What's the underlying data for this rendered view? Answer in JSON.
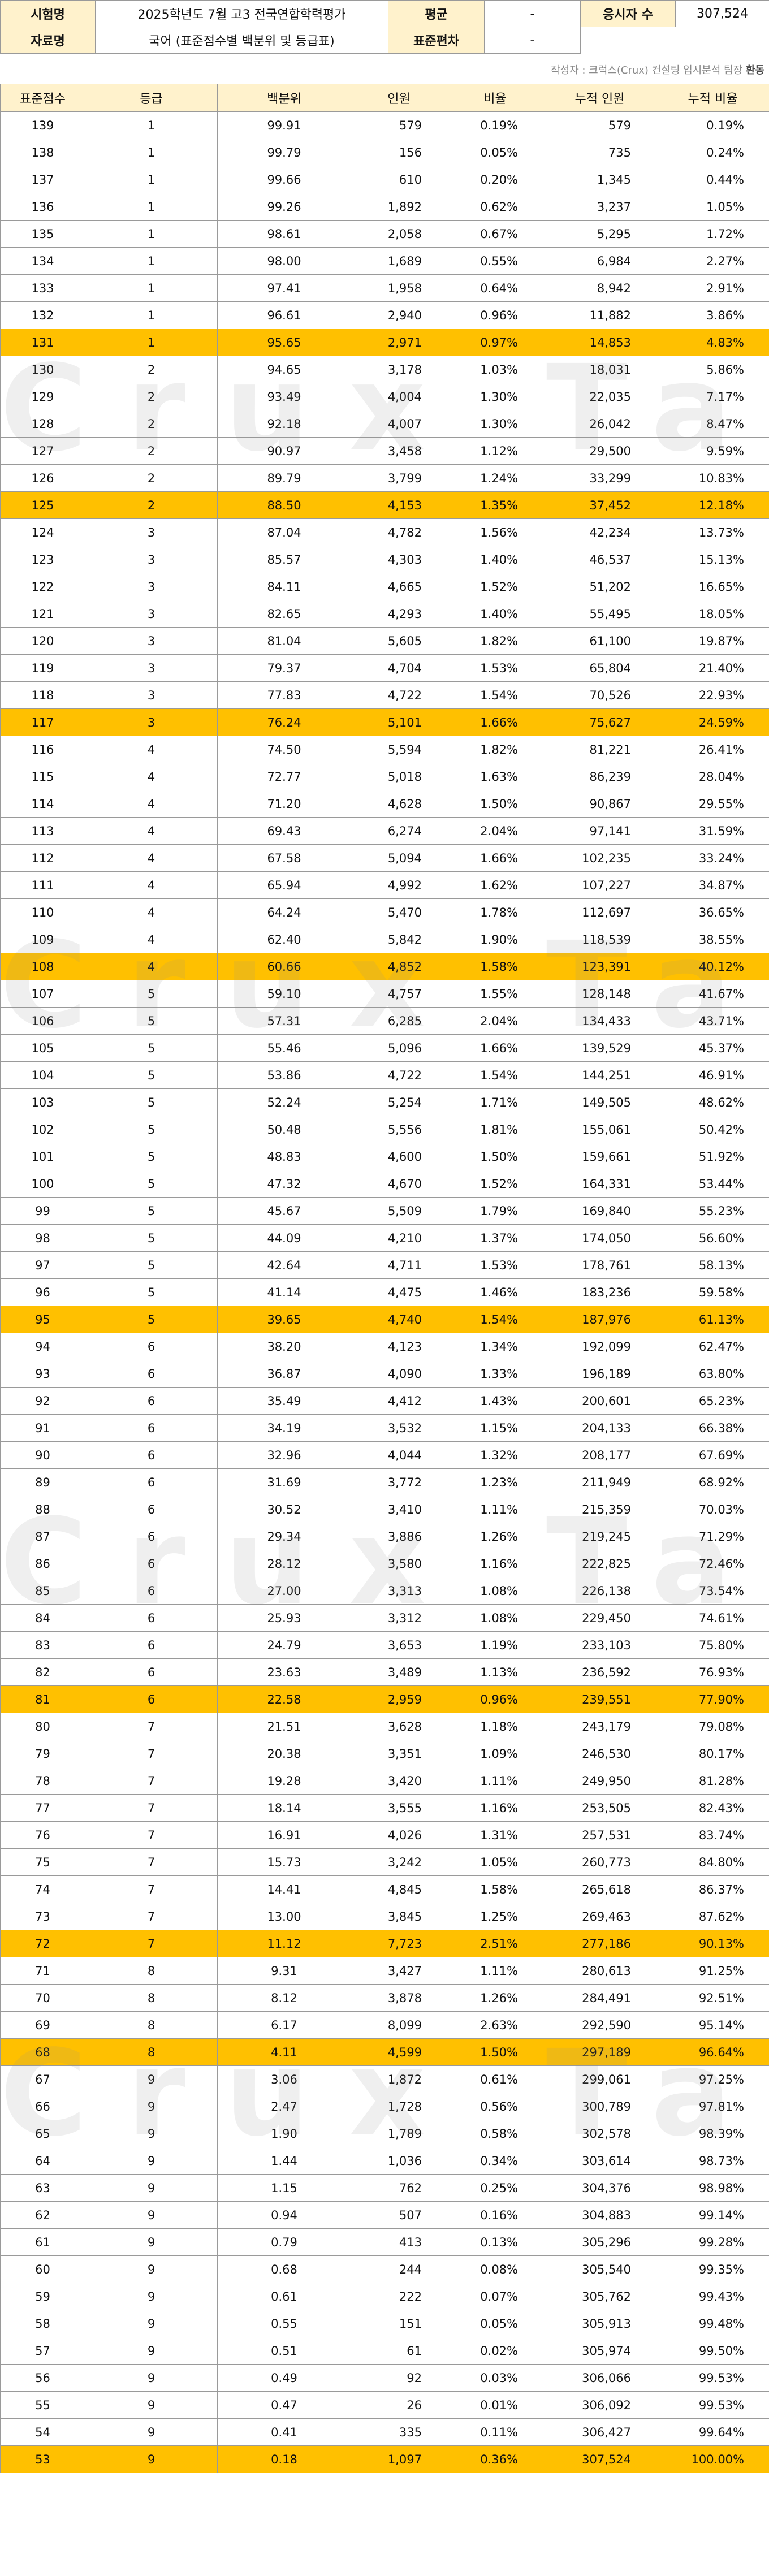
{
  "header": {
    "exam_label": "시험명",
    "exam_value": "2025학년도 7월 고3 전국연합학력평가",
    "mean_label": "평균",
    "mean_value": "-",
    "examinees_label": "응시자 수",
    "examinees_value": "307,524",
    "material_label": "자료명",
    "material_value": "국어 (표준점수별 백분위 및 등급표)",
    "sd_label": "표준편차",
    "sd_value": "-"
  },
  "credit": {
    "text": "작성자 : 크럭스(Crux) 컨설팅 입시분석 팀장 ",
    "author": "환동"
  },
  "watermark": "Crux Tape",
  "columns": [
    "표준점수",
    "등급",
    "백분위",
    "인원",
    "비율",
    "누적 인원",
    "누적 비율"
  ],
  "rows": [
    [
      "139",
      "1",
      "99.91",
      "579",
      "0.19%",
      "579",
      "0.19%"
    ],
    [
      "138",
      "1",
      "99.79",
      "156",
      "0.05%",
      "735",
      "0.24%"
    ],
    [
      "137",
      "1",
      "99.66",
      "610",
      "0.20%",
      "1,345",
      "0.44%"
    ],
    [
      "136",
      "1",
      "99.26",
      "1,892",
      "0.62%",
      "3,237",
      "1.05%"
    ],
    [
      "135",
      "1",
      "98.61",
      "2,058",
      "0.67%",
      "5,295",
      "1.72%"
    ],
    [
      "134",
      "1",
      "98.00",
      "1,689",
      "0.55%",
      "6,984",
      "2.27%"
    ],
    [
      "133",
      "1",
      "97.41",
      "1,958",
      "0.64%",
      "8,942",
      "2.91%"
    ],
    [
      "132",
      "1",
      "96.61",
      "2,940",
      "0.96%",
      "11,882",
      "3.86%"
    ],
    [
      "131",
      "1",
      "95.65",
      "2,971",
      "0.97%",
      "14,853",
      "4.83%"
    ],
    [
      "130",
      "2",
      "94.65",
      "3,178",
      "1.03%",
      "18,031",
      "5.86%"
    ],
    [
      "129",
      "2",
      "93.49",
      "4,004",
      "1.30%",
      "22,035",
      "7.17%"
    ],
    [
      "128",
      "2",
      "92.18",
      "4,007",
      "1.30%",
      "26,042",
      "8.47%"
    ],
    [
      "127",
      "2",
      "90.97",
      "3,458",
      "1.12%",
      "29,500",
      "9.59%"
    ],
    [
      "126",
      "2",
      "89.79",
      "3,799",
      "1.24%",
      "33,299",
      "10.83%"
    ],
    [
      "125",
      "2",
      "88.50",
      "4,153",
      "1.35%",
      "37,452",
      "12.18%"
    ],
    [
      "124",
      "3",
      "87.04",
      "4,782",
      "1.56%",
      "42,234",
      "13.73%"
    ],
    [
      "123",
      "3",
      "85.57",
      "4,303",
      "1.40%",
      "46,537",
      "15.13%"
    ],
    [
      "122",
      "3",
      "84.11",
      "4,665",
      "1.52%",
      "51,202",
      "16.65%"
    ],
    [
      "121",
      "3",
      "82.65",
      "4,293",
      "1.40%",
      "55,495",
      "18.05%"
    ],
    [
      "120",
      "3",
      "81.04",
      "5,605",
      "1.82%",
      "61,100",
      "19.87%"
    ],
    [
      "119",
      "3",
      "79.37",
      "4,704",
      "1.53%",
      "65,804",
      "21.40%"
    ],
    [
      "118",
      "3",
      "77.83",
      "4,722",
      "1.54%",
      "70,526",
      "22.93%"
    ],
    [
      "117",
      "3",
      "76.24",
      "5,101",
      "1.66%",
      "75,627",
      "24.59%"
    ],
    [
      "116",
      "4",
      "74.50",
      "5,594",
      "1.82%",
      "81,221",
      "26.41%"
    ],
    [
      "115",
      "4",
      "72.77",
      "5,018",
      "1.63%",
      "86,239",
      "28.04%"
    ],
    [
      "114",
      "4",
      "71.20",
      "4,628",
      "1.50%",
      "90,867",
      "29.55%"
    ],
    [
      "113",
      "4",
      "69.43",
      "6,274",
      "2.04%",
      "97,141",
      "31.59%"
    ],
    [
      "112",
      "4",
      "67.58",
      "5,094",
      "1.66%",
      "102,235",
      "33.24%"
    ],
    [
      "111",
      "4",
      "65.94",
      "4,992",
      "1.62%",
      "107,227",
      "34.87%"
    ],
    [
      "110",
      "4",
      "64.24",
      "5,470",
      "1.78%",
      "112,697",
      "36.65%"
    ],
    [
      "109",
      "4",
      "62.40",
      "5,842",
      "1.90%",
      "118,539",
      "38.55%"
    ],
    [
      "108",
      "4",
      "60.66",
      "4,852",
      "1.58%",
      "123,391",
      "40.12%"
    ],
    [
      "107",
      "5",
      "59.10",
      "4,757",
      "1.55%",
      "128,148",
      "41.67%"
    ],
    [
      "106",
      "5",
      "57.31",
      "6,285",
      "2.04%",
      "134,433",
      "43.71%"
    ],
    [
      "105",
      "5",
      "55.46",
      "5,096",
      "1.66%",
      "139,529",
      "45.37%"
    ],
    [
      "104",
      "5",
      "53.86",
      "4,722",
      "1.54%",
      "144,251",
      "46.91%"
    ],
    [
      "103",
      "5",
      "52.24",
      "5,254",
      "1.71%",
      "149,505",
      "48.62%"
    ],
    [
      "102",
      "5",
      "50.48",
      "5,556",
      "1.81%",
      "155,061",
      "50.42%"
    ],
    [
      "101",
      "5",
      "48.83",
      "4,600",
      "1.50%",
      "159,661",
      "51.92%"
    ],
    [
      "100",
      "5",
      "47.32",
      "4,670",
      "1.52%",
      "164,331",
      "53.44%"
    ],
    [
      "99",
      "5",
      "45.67",
      "5,509",
      "1.79%",
      "169,840",
      "55.23%"
    ],
    [
      "98",
      "5",
      "44.09",
      "4,210",
      "1.37%",
      "174,050",
      "56.60%"
    ],
    [
      "97",
      "5",
      "42.64",
      "4,711",
      "1.53%",
      "178,761",
      "58.13%"
    ],
    [
      "96",
      "5",
      "41.14",
      "4,475",
      "1.46%",
      "183,236",
      "59.58%"
    ],
    [
      "95",
      "5",
      "39.65",
      "4,740",
      "1.54%",
      "187,976",
      "61.13%"
    ],
    [
      "94",
      "6",
      "38.20",
      "4,123",
      "1.34%",
      "192,099",
      "62.47%"
    ],
    [
      "93",
      "6",
      "36.87",
      "4,090",
      "1.33%",
      "196,189",
      "63.80%"
    ],
    [
      "92",
      "6",
      "35.49",
      "4,412",
      "1.43%",
      "200,601",
      "65.23%"
    ],
    [
      "91",
      "6",
      "34.19",
      "3,532",
      "1.15%",
      "204,133",
      "66.38%"
    ],
    [
      "90",
      "6",
      "32.96",
      "4,044",
      "1.32%",
      "208,177",
      "67.69%"
    ],
    [
      "89",
      "6",
      "31.69",
      "3,772",
      "1.23%",
      "211,949",
      "68.92%"
    ],
    [
      "88",
      "6",
      "30.52",
      "3,410",
      "1.11%",
      "215,359",
      "70.03%"
    ],
    [
      "87",
      "6",
      "29.34",
      "3,886",
      "1.26%",
      "219,245",
      "71.29%"
    ],
    [
      "86",
      "6",
      "28.12",
      "3,580",
      "1.16%",
      "222,825",
      "72.46%"
    ],
    [
      "85",
      "6",
      "27.00",
      "3,313",
      "1.08%",
      "226,138",
      "73.54%"
    ],
    [
      "84",
      "6",
      "25.93",
      "3,312",
      "1.08%",
      "229,450",
      "74.61%"
    ],
    [
      "83",
      "6",
      "24.79",
      "3,653",
      "1.19%",
      "233,103",
      "75.80%"
    ],
    [
      "82",
      "6",
      "23.63",
      "3,489",
      "1.13%",
      "236,592",
      "76.93%"
    ],
    [
      "81",
      "6",
      "22.58",
      "2,959",
      "0.96%",
      "239,551",
      "77.90%"
    ],
    [
      "80",
      "7",
      "21.51",
      "3,628",
      "1.18%",
      "243,179",
      "79.08%"
    ],
    [
      "79",
      "7",
      "20.38",
      "3,351",
      "1.09%",
      "246,530",
      "80.17%"
    ],
    [
      "78",
      "7",
      "19.28",
      "3,420",
      "1.11%",
      "249,950",
      "81.28%"
    ],
    [
      "77",
      "7",
      "18.14",
      "3,555",
      "1.16%",
      "253,505",
      "82.43%"
    ],
    [
      "76",
      "7",
      "16.91",
      "4,026",
      "1.31%",
      "257,531",
      "83.74%"
    ],
    [
      "75",
      "7",
      "15.73",
      "3,242",
      "1.05%",
      "260,773",
      "84.80%"
    ],
    [
      "74",
      "7",
      "14.41",
      "4,845",
      "1.58%",
      "265,618",
      "86.37%"
    ],
    [
      "73",
      "7",
      "13.00",
      "3,845",
      "1.25%",
      "269,463",
      "87.62%"
    ],
    [
      "72",
      "7",
      "11.12",
      "7,723",
      "2.51%",
      "277,186",
      "90.13%"
    ],
    [
      "71",
      "8",
      "9.31",
      "3,427",
      "1.11%",
      "280,613",
      "91.25%"
    ],
    [
      "70",
      "8",
      "8.12",
      "3,878",
      "1.26%",
      "284,491",
      "92.51%"
    ],
    [
      "69",
      "8",
      "6.17",
      "8,099",
      "2.63%",
      "292,590",
      "95.14%"
    ],
    [
      "68",
      "8",
      "4.11",
      "4,599",
      "1.50%",
      "297,189",
      "96.64%"
    ],
    [
      "67",
      "9",
      "3.06",
      "1,872",
      "0.61%",
      "299,061",
      "97.25%"
    ],
    [
      "66",
      "9",
      "2.47",
      "1,728",
      "0.56%",
      "300,789",
      "97.81%"
    ],
    [
      "65",
      "9",
      "1.90",
      "1,789",
      "0.58%",
      "302,578",
      "98.39%"
    ],
    [
      "64",
      "9",
      "1.44",
      "1,036",
      "0.34%",
      "303,614",
      "98.73%"
    ],
    [
      "63",
      "9",
      "1.15",
      "762",
      "0.25%",
      "304,376",
      "98.98%"
    ],
    [
      "62",
      "9",
      "0.94",
      "507",
      "0.16%",
      "304,883",
      "99.14%"
    ],
    [
      "61",
      "9",
      "0.79",
      "413",
      "0.13%",
      "305,296",
      "99.28%"
    ],
    [
      "60",
      "9",
      "0.68",
      "244",
      "0.08%",
      "305,540",
      "99.35%"
    ],
    [
      "59",
      "9",
      "0.61",
      "222",
      "0.07%",
      "305,762",
      "99.43%"
    ],
    [
      "58",
      "9",
      "0.55",
      "151",
      "0.05%",
      "305,913",
      "99.48%"
    ],
    [
      "57",
      "9",
      "0.51",
      "61",
      "0.02%",
      "305,974",
      "99.50%"
    ],
    [
      "56",
      "9",
      "0.49",
      "92",
      "0.03%",
      "306,066",
      "99.53%"
    ],
    [
      "55",
      "9",
      "0.47",
      "26",
      "0.01%",
      "306,092",
      "99.53%"
    ],
    [
      "54",
      "9",
      "0.41",
      "335",
      "0.11%",
      "306,427",
      "99.64%"
    ],
    [
      "53",
      "9",
      "0.18",
      "1,097",
      "0.36%",
      "307,524",
      "100.00%"
    ]
  ],
  "highlighted_scores": [
    "131",
    "125",
    "117",
    "108",
    "95",
    "81",
    "72",
    "68",
    "53"
  ],
  "colors": {
    "highlight": "#ffc000",
    "header_fill": "#fff2cc",
    "border": "#9a9a9a"
  }
}
